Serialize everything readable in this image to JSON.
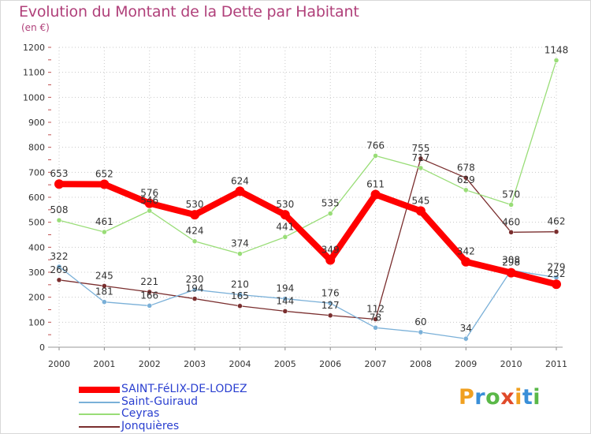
{
  "title": "Evolution du Montant de la Dette par Habitant",
  "subtitle": "(en €)",
  "brand": {
    "letters": [
      "P",
      "r",
      "o",
      "x",
      "i",
      "t",
      "i"
    ],
    "colors": [
      "#f0a020",
      "#3a8fd8",
      "#5ab848",
      "#e04a2a",
      "#f0a020",
      "#3a8fd8",
      "#5ab848"
    ]
  },
  "chart_data": {
    "type": "line",
    "x": [
      "2000",
      "2001",
      "2002",
      "2003",
      "2004",
      "2005",
      "2006",
      "2007",
      "2008",
      "2009",
      "2010",
      "2011"
    ],
    "ylim": [
      0,
      1200
    ],
    "yticks": [
      0,
      100,
      200,
      300,
      400,
      500,
      600,
      700,
      800,
      900,
      1000,
      1100,
      1200
    ],
    "grid": "dotted",
    "legend_position": "bottom-left",
    "series": [
      {
        "name": "SAINT-FéLIX-DE-LODEZ",
        "color": "#ff0000",
        "values": [
          653,
          652,
          576,
          530,
          624,
          530,
          349,
          611,
          545,
          342,
          298,
          252
        ]
      },
      {
        "name": "Saint-Guiraud",
        "color": "#7ab0d8",
        "values": [
          322,
          181,
          166,
          230,
          210,
          194,
          176,
          78,
          60,
          34,
          308,
          279
        ]
      },
      {
        "name": "Ceyras",
        "color": "#99dd77",
        "values": [
          508,
          461,
          546,
          424,
          374,
          441,
          535,
          766,
          717,
          629,
          570,
          1148
        ]
      },
      {
        "name": "Jonquières",
        "color": "#7a2e2e",
        "values": [
          269,
          245,
          221,
          194,
          165,
          144,
          127,
          112,
          755,
          678,
          460,
          462
        ]
      }
    ]
  }
}
